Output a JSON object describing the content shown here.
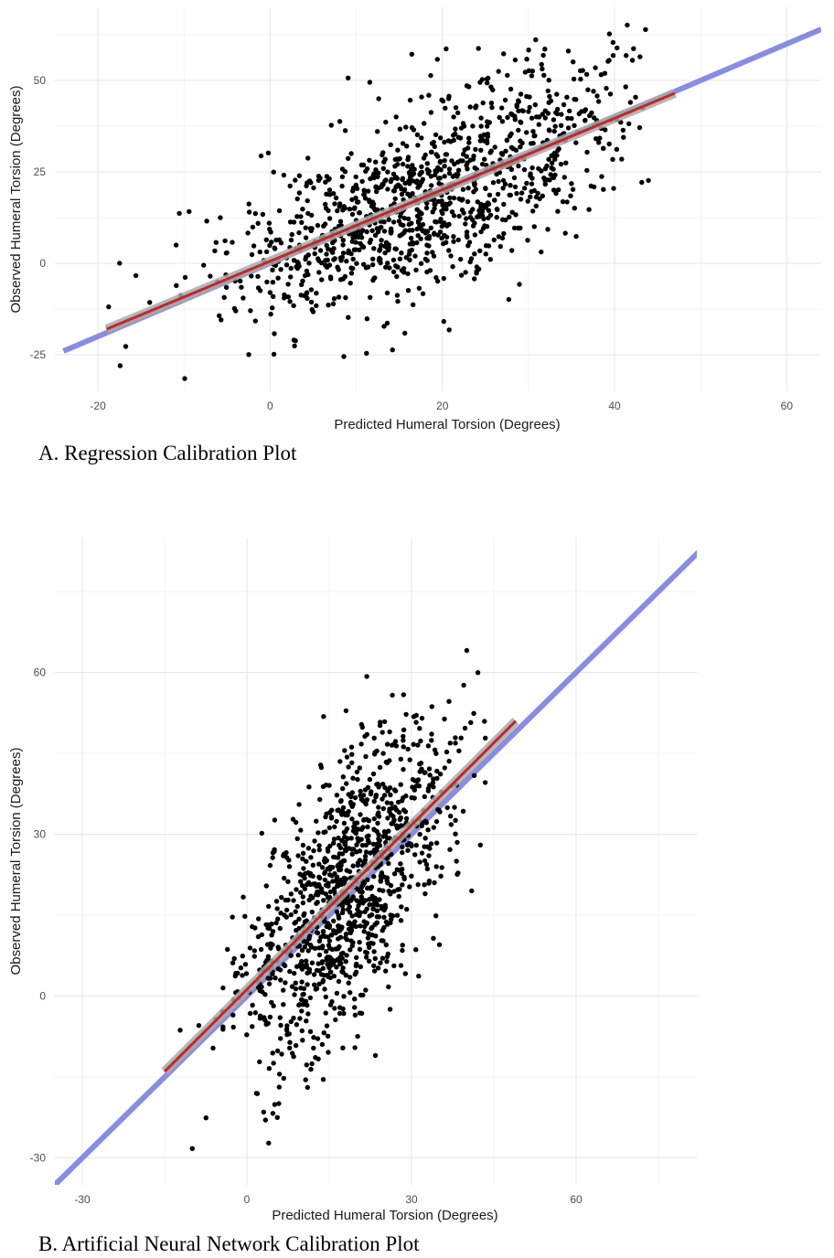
{
  "chart_data": [
    {
      "type": "scatter",
      "xlabel": "Predicted Humeral Torsion (Degrees)",
      "ylabel": "Observed Humeral Torsion (Degrees)",
      "xlim": [
        -25,
        64
      ],
      "ylim": [
        -35,
        70
      ],
      "xticks": [
        -20,
        0,
        20,
        40,
        60
      ],
      "yticks": [
        -25,
        0,
        25,
        50
      ],
      "grid": true,
      "identity_line": {
        "from": [
          -24,
          -24
        ],
        "to": [
          64,
          64
        ],
        "color": "#7b7fe0"
      },
      "fit_line": {
        "from": [
          -19,
          -18
        ],
        "to": [
          47,
          46.5
        ],
        "color": "#c0282a",
        "band_color": "#a9a9a9"
      },
      "point_color": "#000000",
      "points": {
        "n": 1150,
        "seed": 7,
        "x_mean": 19,
        "x_sd": 11.5,
        "x_min": -19,
        "x_max": 44,
        "slope": 0.97,
        "intercept": 1.0,
        "resid_sd": 12.5,
        "y_min": -33,
        "y_max": 67
      }
    },
    {
      "type": "scatter",
      "xlabel": "Predicted Humeral Torsion (Degrees)",
      "ylabel": "Observed Humeral Torsion (Degrees)",
      "xlim": [
        -35,
        82
      ],
      "ylim": [
        -35,
        85
      ],
      "xticks": [
        -30,
        0,
        30,
        60
      ],
      "yticks": [
        -30,
        0,
        30,
        60
      ],
      "grid": true,
      "identity_line": {
        "from": [
          -35,
          -35
        ],
        "to": [
          85,
          85
        ],
        "color": "#7b7fe0"
      },
      "fit_line": {
        "from": [
          -15,
          -14
        ],
        "to": [
          49,
          51
        ],
        "color": "#c0282a",
        "band_color": "#a9a9a9"
      },
      "point_color": "#000000",
      "points": {
        "n": 1150,
        "seed": 11,
        "x_mean": 18,
        "x_sd": 10,
        "x_min": -15,
        "x_max": 44,
        "slope": 1.0,
        "intercept": 1.5,
        "resid_sd": 11.5,
        "y_min": -30,
        "y_max": 67
      }
    }
  ],
  "captions": {
    "a": "A.  Regression Calibration Plot",
    "b": "B.  Artificial Neural Network Calibration Plot"
  }
}
